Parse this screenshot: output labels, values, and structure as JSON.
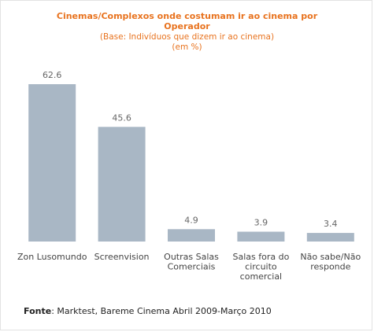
{
  "chart_data": {
    "type": "bar",
    "title": "Cinemas/Complexos onde costumam ir ao cinema por Operador",
    "title_lines": [
      "Cinemas/Complexos onde costumam ir ao cinema por",
      "Operador"
    ],
    "subtitle_lines": [
      "(Base: Indivíduos que dizem ir ao cinema)",
      "(em %)"
    ],
    "categories": [
      "Zon Lusomundo",
      "Screenvision",
      "Outras Salas Comerciais",
      "Salas fora do circuito comercial",
      "Não sabe/Não responde"
    ],
    "category_lines": [
      [
        "Zon Lusomundo"
      ],
      [
        "Screenvision"
      ],
      [
        "Outras Salas",
        "Comerciais"
      ],
      [
        "Salas fora do",
        "circuito",
        "comercial"
      ],
      [
        "Não sabe/Não",
        "responde"
      ]
    ],
    "values": [
      62.6,
      45.6,
      4.9,
      3.9,
      3.4
    ],
    "value_labels": [
      "62.6",
      "45.6",
      "4.9",
      "3.9",
      "3.4"
    ],
    "ylim": [
      0,
      62.6
    ],
    "grid": false,
    "legend": "none",
    "bar_color": "#a9b7c5"
  },
  "source": {
    "label": "Fonte",
    "text": ": Marktest, Bareme Cinema Abril 2009-Março 2010"
  }
}
